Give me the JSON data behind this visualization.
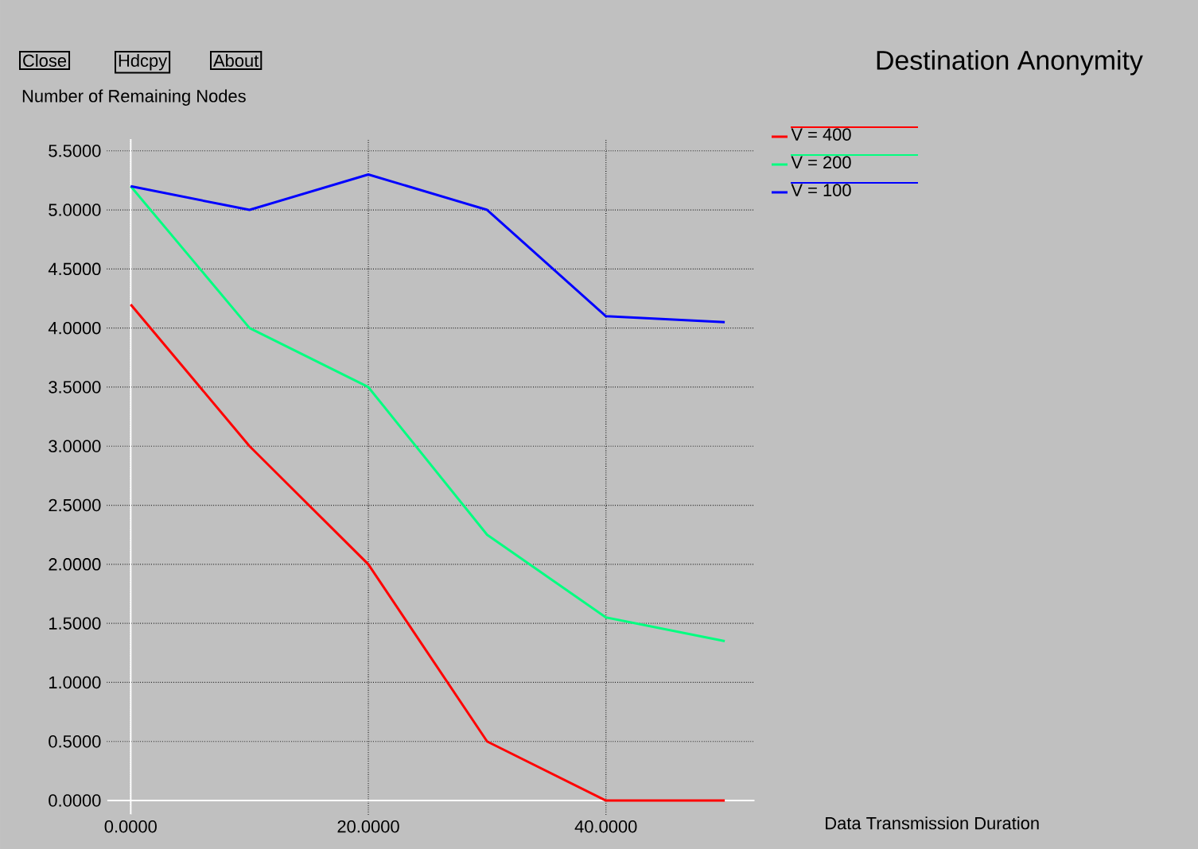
{
  "chart_data": {
    "type": "line",
    "title": "Destination Anonymity",
    "xlabel": "Data Transmission Duration",
    "ylabel": "Number of Remaining Nodes",
    "x": [
      0,
      10,
      20,
      30,
      40,
      50
    ],
    "series": [
      {
        "name": "V = 400",
        "color": "#ff0000",
        "values": [
          4.2,
          3.0,
          2.0,
          0.5,
          0.0,
          0.0
        ]
      },
      {
        "name": "V = 200",
        "color": "#00ff80",
        "values": [
          5.2,
          4.0,
          3.5,
          2.25,
          1.55,
          1.35
        ]
      },
      {
        "name": "V = 100",
        "color": "#0000ff",
        "values": [
          5.2,
          5.0,
          5.3,
          5.0,
          4.1,
          4.05
        ]
      }
    ],
    "xlim": [
      -2,
      52.5
    ],
    "ylim": [
      -0.12,
      5.6
    ],
    "xticks": [
      {
        "value": 0,
        "label": "0.0000"
      },
      {
        "value": 20,
        "label": "20.0000"
      },
      {
        "value": 40,
        "label": "40.0000"
      }
    ],
    "yticks": [
      {
        "value": 0,
        "label": "0.0000"
      },
      {
        "value": 0.5,
        "label": "0.5000"
      },
      {
        "value": 1,
        "label": "1.0000"
      },
      {
        "value": 1.5,
        "label": "1.5000"
      },
      {
        "value": 2,
        "label": "2.0000"
      },
      {
        "value": 2.5,
        "label": "2.5000"
      },
      {
        "value": 3,
        "label": "3.0000"
      },
      {
        "value": 3.5,
        "label": "3.5000"
      },
      {
        "value": 4,
        "label": "4.0000"
      },
      {
        "value": 4.5,
        "label": "4.5000"
      },
      {
        "value": 5,
        "label": "5.0000"
      },
      {
        "value": 5.5,
        "label": "5.5000"
      }
    ],
    "grid": true,
    "legend": "right",
    "marker": "none",
    "line_style": "solid",
    "annotations": [
      "Close",
      "Hdcpy",
      "About"
    ]
  }
}
